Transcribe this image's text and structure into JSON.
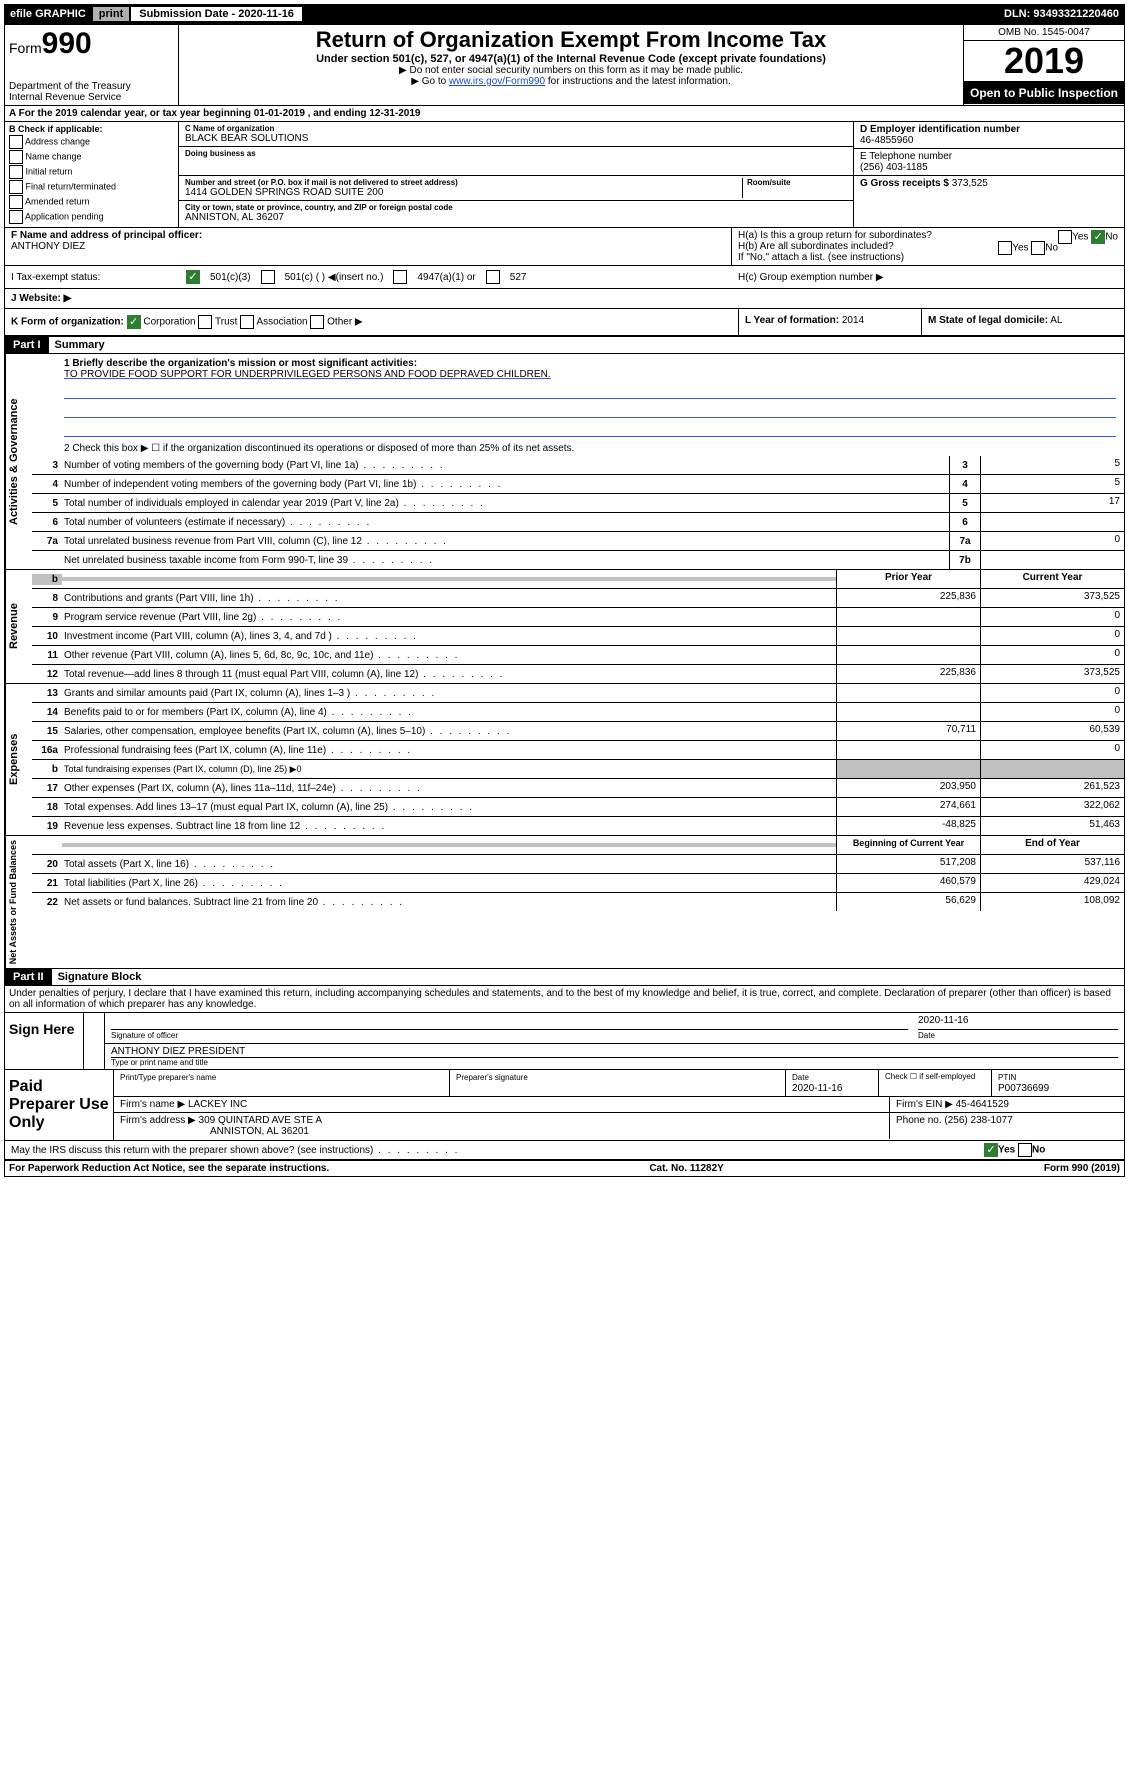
{
  "topbar": {
    "efile": "efile GRAPHIC",
    "print": "print",
    "submission_label": "Submission Date - 2020-11-16",
    "dln": "DLN: 93493321220460"
  },
  "header": {
    "form_prefix": "Form",
    "form_number": "990",
    "dept": "Department of the Treasury",
    "irs": "Internal Revenue Service",
    "title": "Return of Organization Exempt From Income Tax",
    "sub": "Under section 501(c), 527, or 4947(a)(1) of the Internal Revenue Code (except private foundations)",
    "note1": "▶ Do not enter social security numbers on this form as it may be made public.",
    "note2_pre": "▶ Go to ",
    "note2_link": "www.irs.gov/Form990",
    "note2_post": " for instructions and the latest information.",
    "omb": "OMB No. 1545-0047",
    "year": "2019",
    "open": "Open to Public Inspection"
  },
  "row_a": "A For the 2019 calendar year, or tax year beginning 01-01-2019    , and ending 12-31-2019",
  "box_b": {
    "title": "B Check if applicable:",
    "opts": [
      "Address change",
      "Name change",
      "Initial return",
      "Final return/terminated",
      "Amended return",
      "Application pending"
    ]
  },
  "box_c": {
    "name_lbl": "C Name of organization",
    "name": "BLACK BEAR SOLUTIONS",
    "dba_lbl": "Doing business as",
    "addr_lbl": "Number and street (or P.O. box if mail is not delivered to street address)",
    "room_lbl": "Room/suite",
    "addr": "1414 GOLDEN SPRINGS ROAD SUITE 200",
    "city_lbl": "City or town, state or province, country, and ZIP or foreign postal code",
    "city": "ANNISTON, AL  36207"
  },
  "box_d": {
    "ein_lbl": "D Employer identification number",
    "ein": "46-4855960",
    "tel_lbl": "E Telephone number",
    "tel": "(256) 403-1185",
    "gross_lbl": "G Gross receipts $",
    "gross": "373,525"
  },
  "box_f": {
    "lbl": "F  Name and address of principal officer:",
    "name": "ANTHONY DIEZ"
  },
  "box_h": {
    "ha": "H(a)  Is this a group return for subordinates?",
    "hb": "H(b)  Are all subordinates included?",
    "hb_note": "If \"No,\" attach a list. (see instructions)",
    "hc": "H(c)  Group exemption number ▶",
    "yes": "Yes",
    "no": "No"
  },
  "tax_status": {
    "lbl": "I    Tax-exempt status:",
    "opt1": "501(c)(3)",
    "opt2": "501(c) (   ) ◀(insert no.)",
    "opt3": "4947(a)(1) or",
    "opt4": "527"
  },
  "website": "J   Website: ▶",
  "klm": {
    "k": "K Form of organization:",
    "k_opts": [
      "Corporation",
      "Trust",
      "Association",
      "Other ▶"
    ],
    "l_lbl": "L Year of formation:",
    "l_val": "2014",
    "m_lbl": "M State of legal domicile:",
    "m_val": "AL"
  },
  "part1": {
    "hdr": "Part I",
    "title": "Summary",
    "line1_lbl": "1  Briefly describe the organization's mission or most significant activities:",
    "line1_val": "TO PROVIDE FOOD SUPPORT FOR UNDERPRIVILEGED PERSONS AND FOOD DEPRAVED CHILDREN.",
    "line2": "2   Check this box ▶ ☐  if the organization discontinued its operations or disposed of more than 25% of its net assets.",
    "sections": {
      "gov": "Activities & Governance",
      "rev": "Revenue",
      "exp": "Expenses",
      "net": "Net Assets or Fund Balances"
    },
    "gov_lines": [
      {
        "n": "3",
        "d": "Number of voting members of the governing body (Part VI, line 1a)",
        "b": "3",
        "v": "5"
      },
      {
        "n": "4",
        "d": "Number of independent voting members of the governing body (Part VI, line 1b)",
        "b": "4",
        "v": "5"
      },
      {
        "n": "5",
        "d": "Total number of individuals employed in calendar year 2019 (Part V, line 2a)",
        "b": "5",
        "v": "17"
      },
      {
        "n": "6",
        "d": "Total number of volunteers (estimate if necessary)",
        "b": "6",
        "v": ""
      },
      {
        "n": "7a",
        "d": "Total unrelated business revenue from Part VIII, column (C), line 12",
        "b": "7a",
        "v": "0"
      },
      {
        "n": "",
        "d": "Net unrelated business taxable income from Form 990-T, line 39",
        "b": "7b",
        "v": ""
      }
    ],
    "col_prior": "Prior Year",
    "col_curr": "Current Year",
    "col_begin": "Beginning of Current Year",
    "col_end": "End of Year",
    "rev_lines": [
      {
        "n": "8",
        "d": "Contributions and grants (Part VIII, line 1h)",
        "p": "225,836",
        "c": "373,525"
      },
      {
        "n": "9",
        "d": "Program service revenue (Part VIII, line 2g)",
        "p": "",
        "c": "0"
      },
      {
        "n": "10",
        "d": "Investment income (Part VIII, column (A), lines 3, 4, and 7d )",
        "p": "",
        "c": "0"
      },
      {
        "n": "11",
        "d": "Other revenue (Part VIII, column (A), lines 5, 6d, 8c, 9c, 10c, and 11e)",
        "p": "",
        "c": "0"
      },
      {
        "n": "12",
        "d": "Total revenue—add lines 8 through 11 (must equal Part VIII, column (A), line 12)",
        "p": "225,836",
        "c": "373,525"
      }
    ],
    "exp_lines": [
      {
        "n": "13",
        "d": "Grants and similar amounts paid (Part IX, column (A), lines 1–3 )",
        "p": "",
        "c": "0"
      },
      {
        "n": "14",
        "d": "Benefits paid to or for members (Part IX, column (A), line 4)",
        "p": "",
        "c": "0"
      },
      {
        "n": "15",
        "d": "Salaries, other compensation, employee benefits (Part IX, column (A), lines 5–10)",
        "p": "70,711",
        "c": "60,539"
      },
      {
        "n": "16a",
        "d": "Professional fundraising fees (Part IX, column (A), line 11e)",
        "p": "",
        "c": "0"
      },
      {
        "n": "b",
        "d": "Total fundraising expenses (Part IX, column (D), line 25) ▶0",
        "p": null,
        "c": null
      },
      {
        "n": "17",
        "d": "Other expenses (Part IX, column (A), lines 11a–11d, 11f–24e)",
        "p": "203,950",
        "c": "261,523"
      },
      {
        "n": "18",
        "d": "Total expenses. Add lines 13–17 (must equal Part IX, column (A), line 25)",
        "p": "274,661",
        "c": "322,062"
      },
      {
        "n": "19",
        "d": "Revenue less expenses. Subtract line 18 from line 12",
        "p": "-48,825",
        "c": "51,463"
      }
    ],
    "net_lines": [
      {
        "n": "20",
        "d": "Total assets (Part X, line 16)",
        "p": "517,208",
        "c": "537,116"
      },
      {
        "n": "21",
        "d": "Total liabilities (Part X, line 26)",
        "p": "460,579",
        "c": "429,024"
      },
      {
        "n": "22",
        "d": "Net assets or fund balances. Subtract line 21 from line 20",
        "p": "56,629",
        "c": "108,092"
      }
    ]
  },
  "part2": {
    "hdr": "Part II",
    "title": "Signature Block",
    "decl": "Under penalties of perjury, I declare that I have examined this return, including accompanying schedules and statements, and to the best of my knowledge and belief, it is true, correct, and complete. Declaration of preparer (other than officer) is based on all information of which preparer has any knowledge."
  },
  "sign": {
    "lbl": "Sign Here",
    "sig_lbl": "Signature of officer",
    "date": "2020-11-16",
    "date_lbl": "Date",
    "name": "ANTHONY DIEZ  PRESIDENT",
    "name_lbl": "Type or print name and title"
  },
  "paid": {
    "lbl": "Paid Preparer Use Only",
    "h1": "Print/Type preparer's name",
    "h2": "Preparer's signature",
    "h3": "Date",
    "h3v": "2020-11-16",
    "h4": "Check ☐ if self-employed",
    "h5": "PTIN",
    "h5v": "P00736699",
    "firm_name_lbl": "Firm's name    ▶",
    "firm_name": "LACKEY INC",
    "firm_ein_lbl": "Firm's EIN ▶",
    "firm_ein": "45-4641529",
    "firm_addr_lbl": "Firm's address ▶",
    "firm_addr1": "309 QUINTARD AVE STE A",
    "firm_addr2": "ANNISTON, AL  36201",
    "phone_lbl": "Phone no.",
    "phone": "(256) 238-1077"
  },
  "discuss": "May the IRS discuss this return with the preparer shown above? (see instructions)",
  "footer": {
    "pra": "For Paperwork Reduction Act Notice, see the separate instructions.",
    "cat": "Cat. No. 11282Y",
    "form": "Form 990 (2019)"
  }
}
